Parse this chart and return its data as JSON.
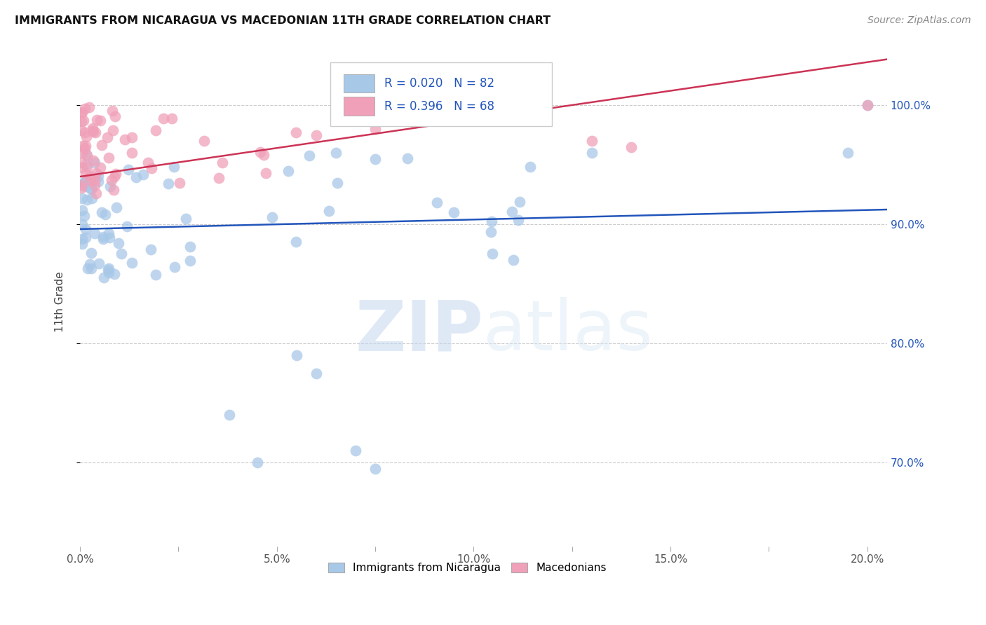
{
  "title": "IMMIGRANTS FROM NICARAGUA VS MACEDONIAN 11TH GRADE CORRELATION CHART",
  "source": "Source: ZipAtlas.com",
  "ylabel": "11th Grade",
  "xlim": [
    0.0,
    0.205
  ],
  "ylim": [
    0.63,
    1.04
  ],
  "xtick_labels": [
    "0.0%",
    "",
    "5.0%",
    "",
    "10.0%",
    "",
    "15.0%",
    "",
    "20.0%"
  ],
  "xtick_vals": [
    0.0,
    0.025,
    0.05,
    0.075,
    0.1,
    0.125,
    0.15,
    0.175,
    0.2
  ],
  "ytick_labels": [
    "70.0%",
    "80.0%",
    "90.0%",
    "100.0%"
  ],
  "ytick_vals": [
    0.7,
    0.8,
    0.9,
    1.0
  ],
  "blue_color": "#a8c8e8",
  "pink_color": "#f0a0b8",
  "blue_line_color": "#2255bb",
  "pink_line_color": "#cc3355",
  "R_blue": 0.02,
  "N_blue": 82,
  "R_pink": 0.396,
  "N_pink": 68,
  "blue_label": "Immigrants from Nicaragua",
  "pink_label": "Macedonians",
  "watermark_zip": "ZIP",
  "watermark_atlas": "atlas",
  "blue_seed": 42,
  "pink_seed": 99
}
